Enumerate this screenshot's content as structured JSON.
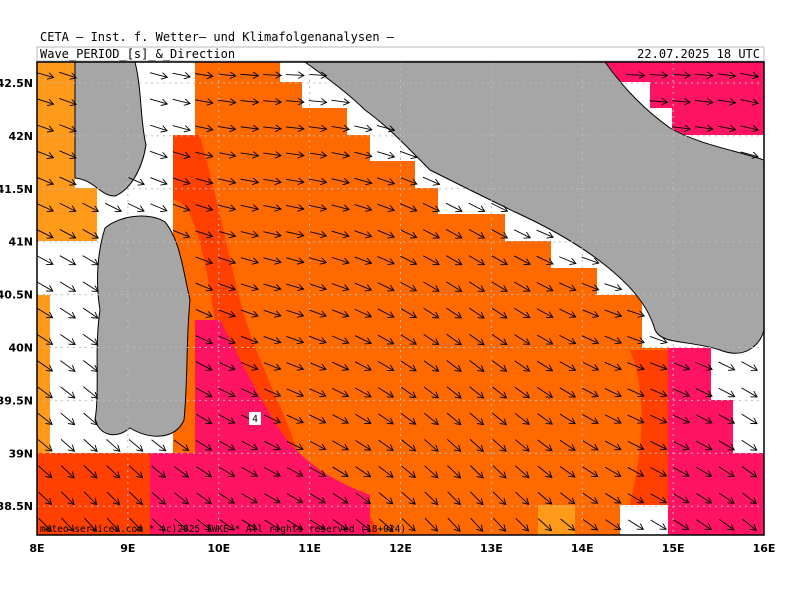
{
  "header": {
    "line1": "CETA — Inst. f. Wetter— und Klimafolgenanalysen —",
    "title": "Wave_PERIOD_[s]_&_Direction",
    "date": "22.07.2025 18 UTC"
  },
  "map": {
    "x_labels": [
      "8E",
      "9E",
      "10E",
      "11E",
      "12E",
      "13E",
      "14E",
      "15E",
      "16E"
    ],
    "y_labels": [
      "42.5N",
      "42N",
      "41.5N",
      "41N",
      "40.5N",
      "40N",
      "39.5N",
      "39N",
      "38.5N"
    ],
    "contour_label": "4",
    "credit": "meteo-services.com  *  (c)2025 IWKE  *  All rights reserved (18+024)"
  }
}
